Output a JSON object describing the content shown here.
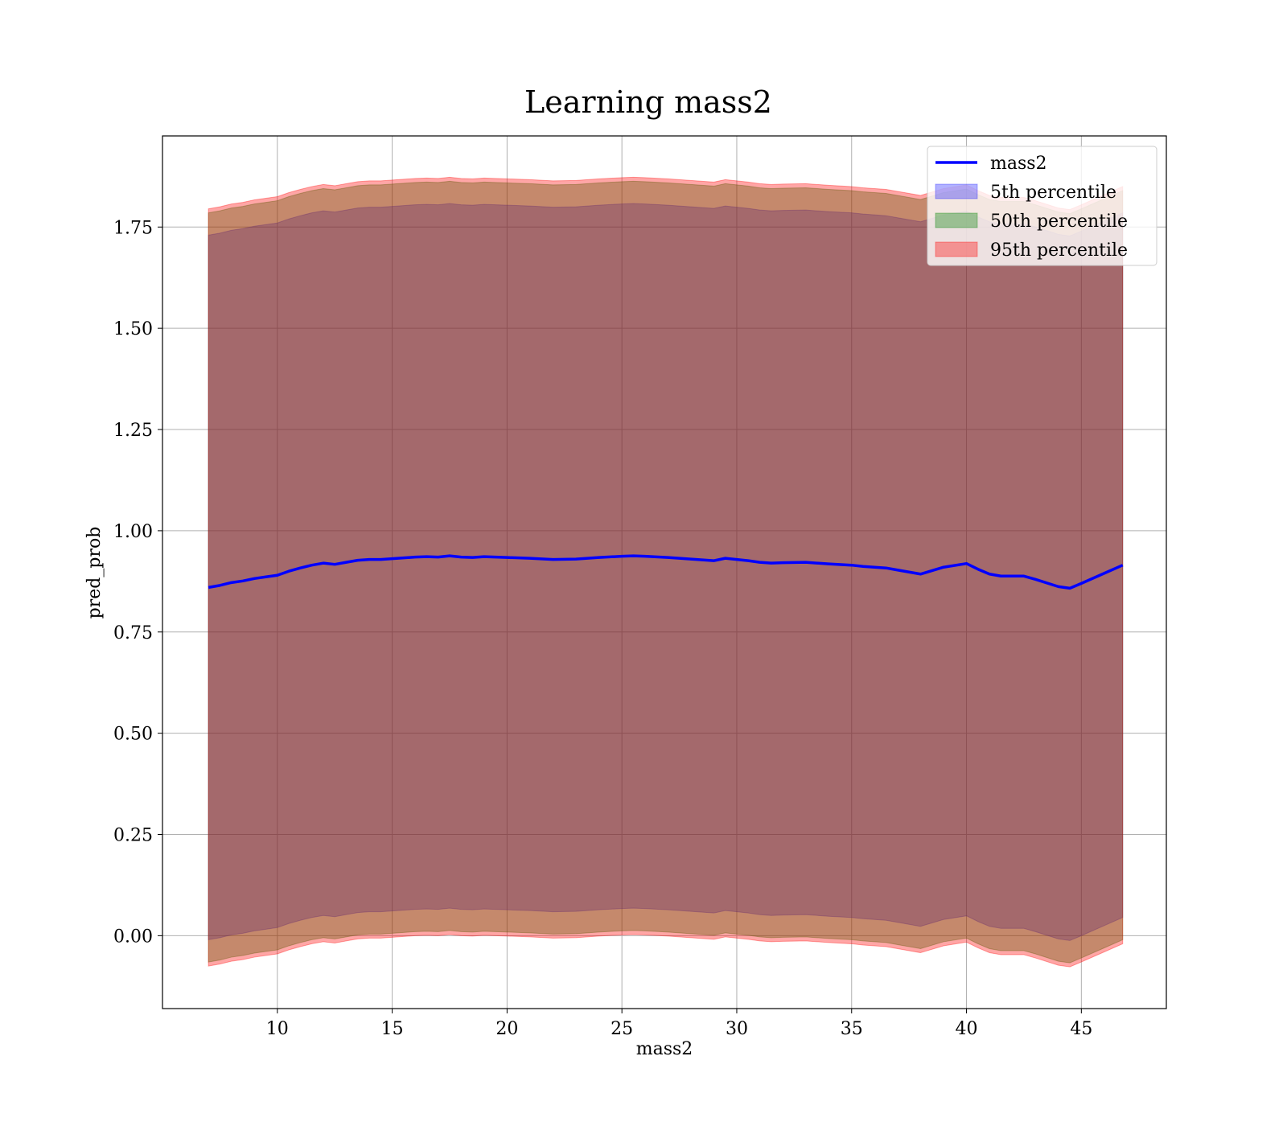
{
  "chart_data": {
    "type": "line",
    "title": "Learning mass2",
    "xlabel": "mass2",
    "ylabel": "pred_prob",
    "xlim": [
      5,
      48.7
    ],
    "ylim": [
      -0.18,
      1.975
    ],
    "grid": true,
    "legend_position": "top-right",
    "x_ticks": [
      10,
      15,
      20,
      25,
      30,
      35,
      40,
      45
    ],
    "y_ticks": [
      0.0,
      0.25,
      0.5,
      0.75,
      1.0,
      1.25,
      1.5,
      1.75
    ],
    "y_tick_labels": [
      "0.00",
      "0.25",
      "0.50",
      "0.75",
      "1.00",
      "1.25",
      "1.50",
      "1.75"
    ],
    "x_tick_labels": [
      "10",
      "15",
      "20",
      "25",
      "30",
      "35",
      "40",
      "45"
    ],
    "x": [
      7.0,
      7.5,
      8.0,
      8.5,
      9.0,
      9.5,
      10.0,
      10.5,
      11.0,
      11.5,
      12.0,
      12.5,
      13.0,
      13.5,
      14.0,
      14.5,
      15.0,
      15.5,
      16.0,
      16.5,
      17.0,
      17.5,
      18.0,
      18.5,
      19.0,
      19.5,
      20.0,
      21.0,
      22.0,
      23.0,
      24.0,
      25.0,
      25.5,
      26.0,
      27.0,
      28.0,
      29.0,
      29.5,
      30.0,
      30.5,
      31.0,
      31.5,
      32.0,
      33.0,
      34.0,
      35.0,
      35.5,
      36.0,
      36.5,
      37.0,
      38.0,
      39.0,
      40.0,
      40.5,
      41.0,
      41.5,
      42.0,
      42.5,
      43.0,
      44.0,
      44.5,
      45.0,
      46.0,
      46.8
    ],
    "series": [
      {
        "name": "mass2",
        "color": "#0000ff",
        "values": [
          0.86,
          0.865,
          0.872,
          0.876,
          0.882,
          0.886,
          0.89,
          0.9,
          0.908,
          0.915,
          0.92,
          0.917,
          0.922,
          0.927,
          0.929,
          0.929,
          0.931,
          0.933,
          0.935,
          0.936,
          0.935,
          0.938,
          0.935,
          0.934,
          0.936,
          0.935,
          0.934,
          0.932,
          0.929,
          0.93,
          0.934,
          0.937,
          0.938,
          0.937,
          0.934,
          0.93,
          0.926,
          0.932,
          0.929,
          0.926,
          0.922,
          0.92,
          0.921,
          0.922,
          0.918,
          0.915,
          0.912,
          0.91,
          0.908,
          0.903,
          0.893,
          0.91,
          0.919,
          0.905,
          0.893,
          0.888,
          0.888,
          0.888,
          0.88,
          0.862,
          0.858,
          0.87,
          0.895,
          0.915
        ]
      }
    ],
    "bands": [
      {
        "name": "5th percentile",
        "color": "#0000ff",
        "opacity": 0.3,
        "lower": [
          -0.01,
          -0.005,
          0.002,
          0.006,
          0.012,
          0.016,
          0.02,
          0.03,
          0.038,
          0.045,
          0.05,
          0.047,
          0.052,
          0.057,
          0.059,
          0.059,
          0.061,
          0.063,
          0.065,
          0.066,
          0.065,
          0.068,
          0.065,
          0.064,
          0.066,
          0.065,
          0.064,
          0.062,
          0.059,
          0.06,
          0.064,
          0.067,
          0.068,
          0.067,
          0.064,
          0.06,
          0.056,
          0.062,
          0.059,
          0.056,
          0.052,
          0.05,
          0.051,
          0.052,
          0.048,
          0.045,
          0.042,
          0.04,
          0.038,
          0.033,
          0.023,
          0.04,
          0.049,
          0.035,
          0.023,
          0.018,
          0.018,
          0.018,
          0.01,
          -0.008,
          -0.012,
          0.0,
          0.025,
          0.045
        ],
        "upper": [
          1.73,
          1.735,
          1.742,
          1.746,
          1.752,
          1.756,
          1.76,
          1.77,
          1.778,
          1.785,
          1.79,
          1.787,
          1.792,
          1.797,
          1.799,
          1.799,
          1.801,
          1.803,
          1.805,
          1.806,
          1.805,
          1.808,
          1.805,
          1.804,
          1.806,
          1.805,
          1.804,
          1.802,
          1.799,
          1.8,
          1.804,
          1.807,
          1.808,
          1.807,
          1.804,
          1.8,
          1.796,
          1.802,
          1.799,
          1.796,
          1.792,
          1.79,
          1.791,
          1.792,
          1.788,
          1.785,
          1.782,
          1.78,
          1.778,
          1.773,
          1.763,
          1.78,
          1.789,
          1.775,
          1.763,
          1.758,
          1.758,
          1.758,
          1.75,
          1.732,
          1.728,
          1.74,
          1.765,
          1.785
        ]
      },
      {
        "name": "50th percentile",
        "color": "#008000",
        "opacity": 0.35,
        "lower": [
          -0.065,
          -0.06,
          -0.053,
          -0.049,
          -0.043,
          -0.039,
          -0.035,
          -0.025,
          -0.017,
          -0.01,
          -0.005,
          -0.008,
          -0.003,
          0.002,
          0.004,
          0.004,
          0.006,
          0.008,
          0.01,
          0.011,
          0.01,
          0.013,
          0.01,
          0.009,
          0.011,
          0.01,
          0.009,
          0.007,
          0.004,
          0.005,
          0.009,
          0.012,
          0.013,
          0.012,
          0.009,
          0.005,
          0.001,
          0.007,
          0.004,
          0.001,
          -0.003,
          -0.005,
          -0.004,
          -0.003,
          -0.007,
          -0.01,
          -0.013,
          -0.015,
          -0.017,
          -0.022,
          -0.032,
          -0.015,
          -0.006,
          -0.02,
          -0.032,
          -0.037,
          -0.037,
          -0.037,
          -0.045,
          -0.063,
          -0.067,
          -0.055,
          -0.03,
          -0.01
        ],
        "upper": [
          1.785,
          1.79,
          1.797,
          1.801,
          1.807,
          1.811,
          1.815,
          1.825,
          1.833,
          1.84,
          1.845,
          1.842,
          1.847,
          1.852,
          1.854,
          1.854,
          1.856,
          1.858,
          1.86,
          1.861,
          1.86,
          1.863,
          1.86,
          1.859,
          1.861,
          1.86,
          1.859,
          1.857,
          1.854,
          1.855,
          1.859,
          1.862,
          1.863,
          1.862,
          1.859,
          1.855,
          1.851,
          1.857,
          1.854,
          1.851,
          1.847,
          1.845,
          1.846,
          1.847,
          1.843,
          1.84,
          1.837,
          1.835,
          1.833,
          1.828,
          1.818,
          1.835,
          1.844,
          1.83,
          1.818,
          1.813,
          1.813,
          1.813,
          1.805,
          1.787,
          1.783,
          1.795,
          1.82,
          1.84
        ]
      },
      {
        "name": "95th percentile",
        "color": "#ff0000",
        "opacity": 0.35,
        "lower": [
          -0.075,
          -0.07,
          -0.063,
          -0.059,
          -0.053,
          -0.049,
          -0.045,
          -0.035,
          -0.027,
          -0.02,
          -0.015,
          -0.018,
          -0.013,
          -0.008,
          -0.006,
          -0.006,
          -0.004,
          -0.002,
          0.0,
          0.001,
          0.0,
          0.003,
          0.0,
          -0.001,
          0.001,
          0.0,
          -0.001,
          -0.003,
          -0.006,
          -0.005,
          -0.001,
          0.002,
          0.003,
          0.002,
          -0.001,
          -0.005,
          -0.009,
          -0.003,
          -0.006,
          -0.009,
          -0.013,
          -0.015,
          -0.014,
          -0.013,
          -0.017,
          -0.02,
          -0.023,
          -0.025,
          -0.027,
          -0.032,
          -0.042,
          -0.025,
          -0.016,
          -0.03,
          -0.042,
          -0.047,
          -0.047,
          -0.047,
          -0.055,
          -0.073,
          -0.077,
          -0.065,
          -0.04,
          -0.02
        ],
        "upper": [
          1.795,
          1.8,
          1.807,
          1.811,
          1.817,
          1.821,
          1.825,
          1.835,
          1.843,
          1.85,
          1.855,
          1.852,
          1.857,
          1.862,
          1.864,
          1.864,
          1.866,
          1.868,
          1.87,
          1.871,
          1.87,
          1.873,
          1.87,
          1.869,
          1.871,
          1.87,
          1.869,
          1.867,
          1.864,
          1.865,
          1.869,
          1.872,
          1.873,
          1.872,
          1.869,
          1.865,
          1.861,
          1.867,
          1.864,
          1.861,
          1.857,
          1.855,
          1.856,
          1.857,
          1.853,
          1.85,
          1.847,
          1.845,
          1.843,
          1.838,
          1.828,
          1.845,
          1.854,
          1.84,
          1.828,
          1.823,
          1.823,
          1.823,
          1.815,
          1.797,
          1.793,
          1.805,
          1.83,
          1.85
        ]
      }
    ],
    "legend": [
      {
        "label": "mass2",
        "kind": "line",
        "color": "#0000ff"
      },
      {
        "label": "5th percentile",
        "kind": "patch",
        "color": "#0000ff",
        "opacity": 0.3
      },
      {
        "label": "50th percentile",
        "kind": "patch",
        "color": "#008000",
        "opacity": 0.35
      },
      {
        "label": "95th percentile",
        "kind": "patch",
        "color": "#ff0000",
        "opacity": 0.35
      }
    ]
  }
}
